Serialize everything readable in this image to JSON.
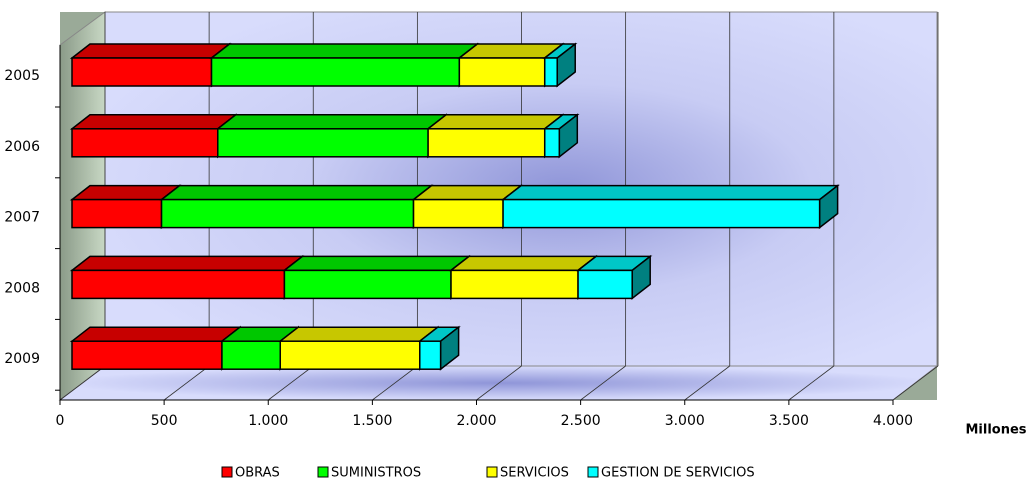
{
  "chart_data": {
    "type": "bar3d_stacked_horizontal",
    "categories": [
      "2005",
      "2006",
      "2007",
      "2008",
      "2009"
    ],
    "series": [
      {
        "name": "OBRAS",
        "color": "#ff0000",
        "values": [
          670,
          700,
          430,
          1020,
          720
        ]
      },
      {
        "name": "SUMINISTROS",
        "color": "#00ff00",
        "values": [
          1190,
          1010,
          1210,
          800,
          280
        ]
      },
      {
        "name": "SERVICIOS",
        "color": "#ffff00",
        "values": [
          410,
          560,
          430,
          610,
          670
        ]
      },
      {
        "name": "GESTION DE SERVICIOS",
        "color": "#00ffff",
        "values": [
          60,
          70,
          1520,
          260,
          100
        ]
      }
    ],
    "xlabel": "Millones",
    "xlim": [
      0,
      4000
    ],
    "xticks": [
      0,
      500,
      {
        "value": 1000,
        "label": "1.000"
      },
      {
        "value": 1500,
        "label": "1.500"
      },
      {
        "value": 2000,
        "label": "2.000"
      },
      {
        "value": 2500,
        "label": "2.500"
      },
      {
        "value": 3000,
        "label": "3.000"
      },
      {
        "value": 3500,
        "label": "3.500"
      },
      {
        "value": 4000,
        "label": "4.000"
      }
    ],
    "grid": true
  }
}
